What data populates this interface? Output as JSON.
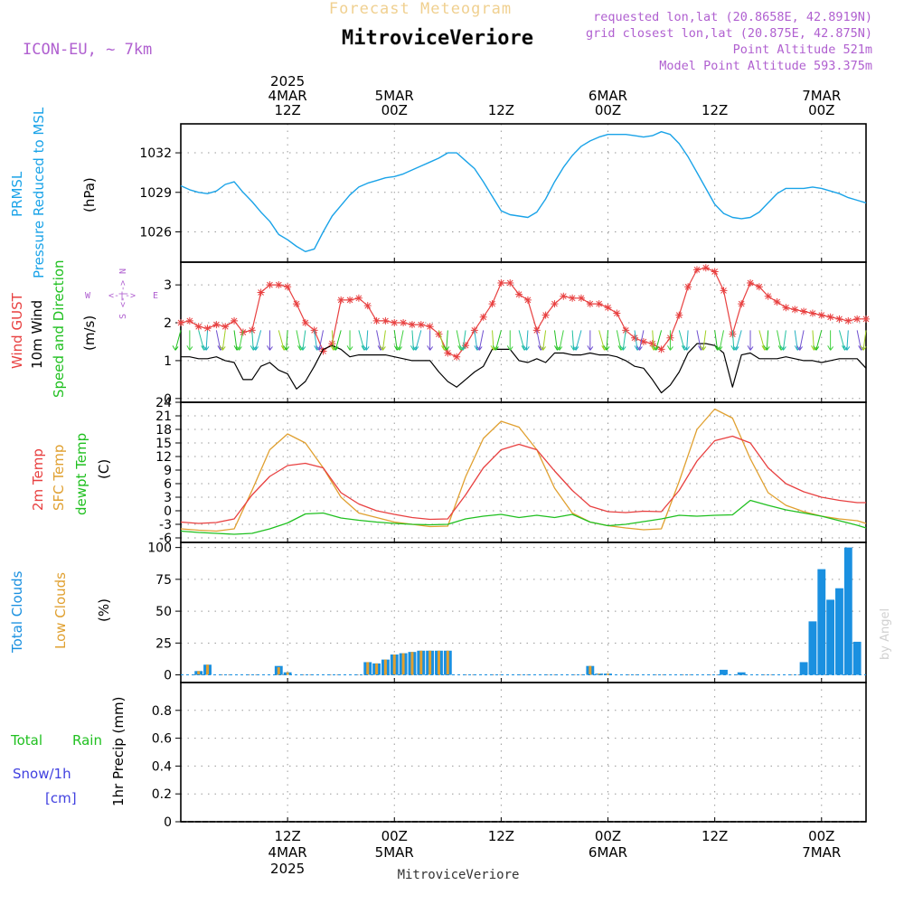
{
  "header": {
    "title_faded": "Forecast Meteogram",
    "station": "MitroviceVeriore",
    "model": "ICON-EU, ~ 7km",
    "requested": "requested lon,lat (20.8658E, 42.8919N)",
    "closest": "grid closest lon,lat (20.875E, 42.875N)",
    "point_alt": "Point Altitude 521m",
    "model_alt": "Model Point Altitude 593.375m",
    "credit": "by Angel",
    "footer_station": "MitroviceVeriore"
  },
  "time_axis": {
    "top_labels": [
      {
        "h": 12,
        "lines": [
          "2025",
          "4MAR",
          "12Z"
        ]
      },
      {
        "h": 24,
        "lines": [
          "5MAR",
          "00Z"
        ]
      },
      {
        "h": 36,
        "lines": [
          "12Z"
        ]
      },
      {
        "h": 48,
        "lines": [
          "6MAR",
          "00Z"
        ]
      },
      {
        "h": 60,
        "lines": [
          "12Z"
        ]
      },
      {
        "h": 72,
        "lines": [
          "7MAR",
          "00Z"
        ]
      }
    ],
    "bottom_labels": [
      {
        "h": 12,
        "lines": [
          "12Z",
          "4MAR",
          "2025"
        ]
      },
      {
        "h": 24,
        "lines": [
          "00Z",
          "5MAR"
        ]
      },
      {
        "h": 36,
        "lines": [
          "12Z"
        ]
      },
      {
        "h": 48,
        "lines": [
          "00Z",
          "6MAR"
        ]
      },
      {
        "h": 60,
        "lines": [
          "12Z"
        ]
      },
      {
        "h": 72,
        "lines": [
          "00Z",
          "7MAR"
        ]
      }
    ],
    "range_hours": [
      0,
      77
    ]
  },
  "panels": {
    "pressure": {
      "labels": [
        "PRMSL",
        "Pressure Reduced to MSL"
      ],
      "unit": "(hPa)",
      "ticks": [
        "1026",
        "1029",
        "1032"
      ]
    },
    "wind": {
      "labels": [
        "Wind GUST",
        "10m Wind",
        "Speed and Direction"
      ],
      "unit": "(m/s)",
      "ticks": [
        "0",
        "1",
        "2",
        "3"
      ],
      "compass": {
        "n": "N",
        "s": "S",
        "w": "W",
        "e": "E",
        "axis": "<-|->"
      }
    },
    "temp": {
      "labels": [
        "2m Temp",
        "SFC Temp",
        "dewpt Temp"
      ],
      "unit": "(C)",
      "ticks": [
        "-6",
        "-3",
        "0",
        "3",
        "6",
        "9",
        "12",
        "15",
        "18",
        "21",
        "24"
      ]
    },
    "clouds": {
      "labels": [
        "Total Clouds",
        "Low Clouds"
      ],
      "unit": "(%)",
      "ticks": [
        "0",
        "25",
        "50",
        "75",
        "100"
      ]
    },
    "precip": {
      "labels": [
        "Total",
        "Rain",
        "Snow/1h",
        "[cm]"
      ],
      "unit": "1hr Precip (mm)",
      "ticks": [
        "0",
        "0.2",
        "0.4",
        "0.6",
        "0.8"
      ]
    }
  },
  "colors": {
    "pressure": "#1aa3e8",
    "gust": "#e84040",
    "wind": "#000000",
    "t2m": "#e84040",
    "sfc": "#e0a030",
    "dew": "#20c020",
    "total_clouds": "#1a90e0",
    "low_clouds": "#e0a030",
    "grid": "#999999",
    "meta": "#b060d0"
  },
  "chart_data": [
    {
      "type": "line",
      "ylabel": "(hPa)",
      "ylim": [
        1023.7,
        1034.2
      ],
      "series": [
        {
          "name": "PRMSL",
          "x": [
            0,
            1,
            2,
            3,
            4,
            5,
            6,
            7,
            8,
            9,
            10,
            11,
            12,
            13,
            14,
            15,
            16,
            17,
            18,
            19,
            20,
            21,
            22,
            23,
            24,
            25,
            26,
            27,
            28,
            29,
            30,
            31,
            32,
            33,
            34,
            35,
            36,
            37,
            38,
            39,
            40,
            41,
            42,
            43,
            44,
            45,
            46,
            47,
            48,
            49,
            50,
            51,
            52,
            53,
            54,
            55,
            56,
            57,
            58,
            59,
            60,
            61,
            62,
            63,
            64,
            65,
            66,
            67,
            68,
            69,
            70,
            71,
            72,
            73,
            74,
            75,
            76,
            77
          ],
          "values": [
            1029.5,
            1029.2,
            1029.0,
            1028.9,
            1029.1,
            1029.6,
            1029.8,
            1029.0,
            1028.3,
            1027.5,
            1026.8,
            1025.8,
            1025.4,
            1024.9,
            1024.5,
            1024.7,
            1026.0,
            1027.2,
            1028.0,
            1028.8,
            1029.4,
            1029.7,
            1029.9,
            1030.1,
            1030.2,
            1030.4,
            1030.7,
            1031.0,
            1031.3,
            1031.6,
            1032.0,
            1032.0,
            1031.4,
            1030.8,
            1029.8,
            1028.7,
            1027.6,
            1027.3,
            1027.2,
            1027.1,
            1027.5,
            1028.5,
            1029.8,
            1030.9,
            1031.8,
            1032.5,
            1032.9,
            1033.2,
            1033.4,
            1033.4,
            1033.4,
            1033.3,
            1033.2,
            1033.3,
            1033.6,
            1033.4,
            1032.7,
            1031.7,
            1030.5,
            1029.3,
            1028.1,
            1027.4,
            1027.1,
            1027.0,
            1027.1,
            1027.5,
            1028.2,
            1028.9,
            1029.3,
            1029.3,
            1029.3,
            1029.4,
            1029.3,
            1029.1,
            1028.9,
            1028.6,
            1028.4,
            1028.2
          ]
        }
      ]
    },
    {
      "type": "line",
      "ylabel": "(m/s)",
      "ylim": [
        -0.1,
        3.6
      ],
      "series": [
        {
          "name": "Wind GUST",
          "x": [
            0,
            1,
            2,
            3,
            4,
            5,
            6,
            7,
            8,
            9,
            10,
            11,
            12,
            13,
            14,
            15,
            16,
            17,
            18,
            19,
            20,
            21,
            22,
            23,
            24,
            25,
            26,
            27,
            28,
            29,
            30,
            31,
            32,
            33,
            34,
            35,
            36,
            37,
            38,
            39,
            40,
            41,
            42,
            43,
            44,
            45,
            46,
            47,
            48,
            49,
            50,
            51,
            52,
            53,
            54,
            55,
            56,
            57,
            58,
            59,
            60,
            61,
            62,
            63,
            64,
            65,
            66,
            67,
            68,
            69,
            70,
            71,
            72,
            73,
            74,
            75,
            76,
            77
          ],
          "values": [
            2.0,
            2.05,
            1.9,
            1.85,
            1.95,
            1.9,
            2.05,
            1.75,
            1.8,
            2.8,
            3.0,
            3.0,
            2.95,
            2.5,
            2.0,
            1.8,
            1.25,
            1.45,
            2.6,
            2.6,
            2.65,
            2.45,
            2.05,
            2.05,
            2.0,
            2.0,
            1.95,
            1.95,
            1.9,
            1.7,
            1.2,
            1.1,
            1.4,
            1.8,
            2.15,
            2.5,
            3.05,
            3.05,
            2.75,
            2.6,
            1.8,
            2.2,
            2.5,
            2.7,
            2.65,
            2.65,
            2.5,
            2.5,
            2.4,
            2.25,
            1.8,
            1.6,
            1.5,
            1.45,
            1.3,
            1.6,
            2.2,
            2.95,
            3.4,
            3.45,
            3.35,
            2.85,
            1.7,
            2.5,
            3.05,
            2.95,
            2.7,
            2.55,
            2.4,
            2.35,
            2.3,
            2.25,
            2.2,
            2.15,
            2.1,
            2.05,
            2.1,
            2.1
          ]
        },
        {
          "name": "10m Wind",
          "x": [
            0,
            1,
            2,
            3,
            4,
            5,
            6,
            7,
            8,
            9,
            10,
            11,
            12,
            13,
            14,
            15,
            16,
            17,
            18,
            19,
            20,
            21,
            22,
            23,
            24,
            25,
            26,
            27,
            28,
            29,
            30,
            31,
            32,
            33,
            34,
            35,
            36,
            37,
            38,
            39,
            40,
            41,
            42,
            43,
            44,
            45,
            46,
            47,
            48,
            49,
            50,
            51,
            52,
            53,
            54,
            55,
            56,
            57,
            58,
            59,
            60,
            61,
            62,
            63,
            64,
            65,
            66,
            67,
            68,
            69,
            70,
            71,
            72,
            73,
            74,
            75,
            76,
            77
          ],
          "values": [
            1.1,
            1.1,
            1.05,
            1.05,
            1.1,
            1.0,
            0.95,
            0.5,
            0.5,
            0.85,
            0.95,
            0.75,
            0.65,
            0.25,
            0.45,
            0.85,
            1.3,
            1.4,
            1.3,
            1.1,
            1.15,
            1.15,
            1.15,
            1.15,
            1.1,
            1.05,
            1.0,
            1.0,
            1.0,
            0.7,
            0.45,
            0.3,
            0.5,
            0.7,
            0.85,
            1.3,
            1.3,
            1.3,
            1.0,
            0.95,
            1.05,
            0.95,
            1.2,
            1.2,
            1.15,
            1.15,
            1.2,
            1.15,
            1.15,
            1.1,
            1.0,
            0.85,
            0.8,
            0.5,
            0.15,
            0.35,
            0.7,
            1.2,
            1.45,
            1.45,
            1.4,
            1.2,
            0.3,
            1.15,
            1.2,
            1.05,
            1.05,
            1.05,
            1.1,
            1.05,
            1.0,
            1.0,
            0.95,
            1.0,
            1.05,
            1.05,
            1.05,
            0.8
          ]
        }
      ]
    },
    {
      "type": "line",
      "ylabel": "(C)",
      "ylim": [
        -7,
        24
      ],
      "series": [
        {
          "name": "2m Temp",
          "x": [
            0,
            2,
            4,
            6,
            8,
            10,
            12,
            14,
            16,
            18,
            20,
            22,
            24,
            26,
            28,
            30,
            32,
            34,
            36,
            38,
            40,
            42,
            44,
            46,
            48,
            50,
            52,
            54,
            56,
            58,
            60,
            62,
            64,
            66,
            68,
            70,
            72,
            74,
            76,
            77
          ],
          "values": [
            -2.5,
            -2.8,
            -2.6,
            -1.8,
            3.5,
            7.6,
            10.0,
            10.5,
            9.5,
            4.0,
            1.5,
            0.0,
            -0.8,
            -1.5,
            -1.9,
            -1.8,
            3.5,
            9.5,
            13.5,
            14.7,
            13.5,
            8.8,
            4.5,
            1.0,
            -0.2,
            -0.4,
            -0.1,
            -0.2,
            4.5,
            11.0,
            15.5,
            16.5,
            15.0,
            9.5,
            6.0,
            4.2,
            3.0,
            2.3,
            1.8,
            1.8
          ]
        },
        {
          "name": "SFC Temp",
          "x": [
            0,
            2,
            4,
            6,
            8,
            10,
            12,
            14,
            16,
            18,
            20,
            22,
            24,
            26,
            28,
            30,
            32,
            34,
            36,
            38,
            40,
            42,
            44,
            46,
            48,
            50,
            52,
            54,
            56,
            58,
            60,
            62,
            64,
            66,
            68,
            70,
            72,
            74,
            76,
            77
          ],
          "values": [
            -4.0,
            -4.3,
            -4.5,
            -4.0,
            4.5,
            13.5,
            17.0,
            15.0,
            9.5,
            3.0,
            -0.5,
            -1.5,
            -2.5,
            -3.0,
            -3.5,
            -3.4,
            7.5,
            16.0,
            19.8,
            18.5,
            13.5,
            5.0,
            -0.5,
            -2.5,
            -3.3,
            -3.8,
            -4.2,
            -4.0,
            6.5,
            18.0,
            22.5,
            20.5,
            11.5,
            4.0,
            1.2,
            -0.2,
            -1.2,
            -1.8,
            -2.2,
            -2.8
          ]
        },
        {
          "name": "dewpt Temp",
          "x": [
            0,
            2,
            4,
            6,
            8,
            10,
            12,
            14,
            16,
            18,
            20,
            22,
            24,
            26,
            28,
            30,
            32,
            34,
            36,
            38,
            40,
            42,
            44,
            46,
            48,
            50,
            52,
            54,
            56,
            58,
            60,
            62,
            64,
            66,
            68,
            70,
            72,
            74,
            76,
            77
          ],
          "values": [
            -4.5,
            -4.8,
            -5.0,
            -5.2,
            -5.0,
            -4.0,
            -2.7,
            -0.7,
            -0.5,
            -1.6,
            -2.1,
            -2.5,
            -2.8,
            -3.0,
            -3.1,
            -3.0,
            -1.8,
            -1.2,
            -0.8,
            -1.5,
            -1.0,
            -1.5,
            -0.8,
            -2.5,
            -3.3,
            -3.0,
            -2.4,
            -1.8,
            -1.0,
            -1.2,
            -1.0,
            -0.9,
            2.3,
            1.2,
            0.2,
            -0.5,
            -1.2,
            -2.2,
            -3.2,
            -3.8
          ]
        }
      ]
    },
    {
      "type": "bar",
      "ylabel": "(%)",
      "ylim": [
        -6,
        104
      ],
      "x": [
        2,
        3,
        11,
        12,
        21,
        22,
        23,
        24,
        25,
        26,
        27,
        28,
        29,
        30,
        46,
        47,
        48,
        61,
        63,
        70,
        71,
        72,
        73,
        74,
        75,
        76,
        77
      ],
      "series": [
        {
          "name": "Total Clouds",
          "values": [
            3,
            8,
            7,
            2,
            10,
            9,
            12,
            16,
            17,
            18,
            19,
            19,
            19,
            19,
            7,
            1,
            1,
            4,
            2,
            10,
            42,
            83,
            59,
            68,
            100,
            26,
            0
          ]
        },
        {
          "name": "Low Clouds",
          "values": [
            3,
            8,
            6,
            2,
            10,
            9,
            12,
            16,
            17,
            18,
            19,
            19,
            19,
            19,
            7,
            1,
            1,
            0,
            0,
            0,
            0,
            0,
            0,
            0,
            0,
            0,
            0
          ]
        }
      ]
    },
    {
      "type": "bar",
      "ylabel": "1hr Precip (mm)",
      "ylim": [
        0,
        1.0
      ],
      "x": [],
      "series": [
        {
          "name": "Total Rain",
          "values": []
        },
        {
          "name": "Snow/1h",
          "values": []
        }
      ]
    }
  ]
}
